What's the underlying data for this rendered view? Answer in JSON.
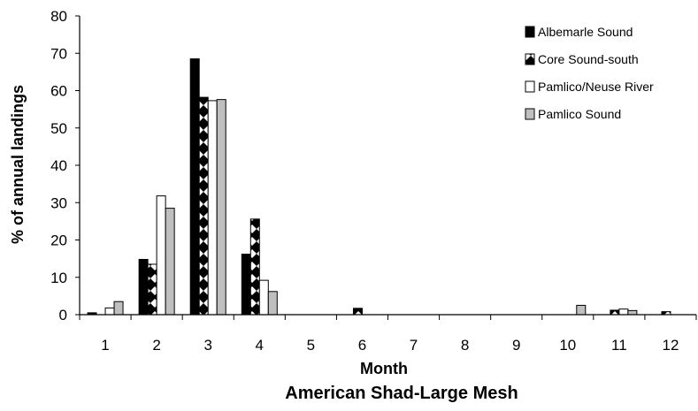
{
  "chart_data": {
    "type": "bar",
    "title": "American Shad-Large Mesh",
    "xlabel": "Month",
    "ylabel": "% of annual landings",
    "ylim": [
      0,
      80
    ],
    "yticks": [
      "0",
      "10",
      "20",
      "30",
      "40",
      "50",
      "60",
      "70",
      "80"
    ],
    "categories": [
      "1",
      "2",
      "3",
      "4",
      "5",
      "6",
      "7",
      "8",
      "9",
      "10",
      "11",
      "12"
    ],
    "legend_position": "top-right",
    "grid": false,
    "series": [
      {
        "name": "Albemarle Sound",
        "fill": "#000000",
        "pattern": "solid",
        "values": [
          0.5,
          14.8,
          68.5,
          16.2,
          0,
          0,
          0,
          0,
          0,
          0,
          0,
          0
        ]
      },
      {
        "name": "Core Sound-south",
        "fill": "#000000",
        "pattern": "checker",
        "values": [
          0,
          13.5,
          58.2,
          25.6,
          0,
          1.7,
          0,
          0,
          0,
          0,
          1.2,
          0.8
        ]
      },
      {
        "name": "Pamlico/Neuse River",
        "fill": "#ffffff",
        "pattern": "solid",
        "values": [
          1.8,
          31.8,
          57.3,
          9.2,
          0,
          0,
          0,
          0,
          0,
          0,
          1.5,
          0
        ]
      },
      {
        "name": "Pamlico Sound",
        "fill": "#bfbfbf",
        "pattern": "solid",
        "values": [
          3.5,
          28.5,
          57.6,
          6.2,
          0,
          0,
          0,
          0,
          0,
          2.5,
          1.1,
          0
        ]
      }
    ]
  }
}
